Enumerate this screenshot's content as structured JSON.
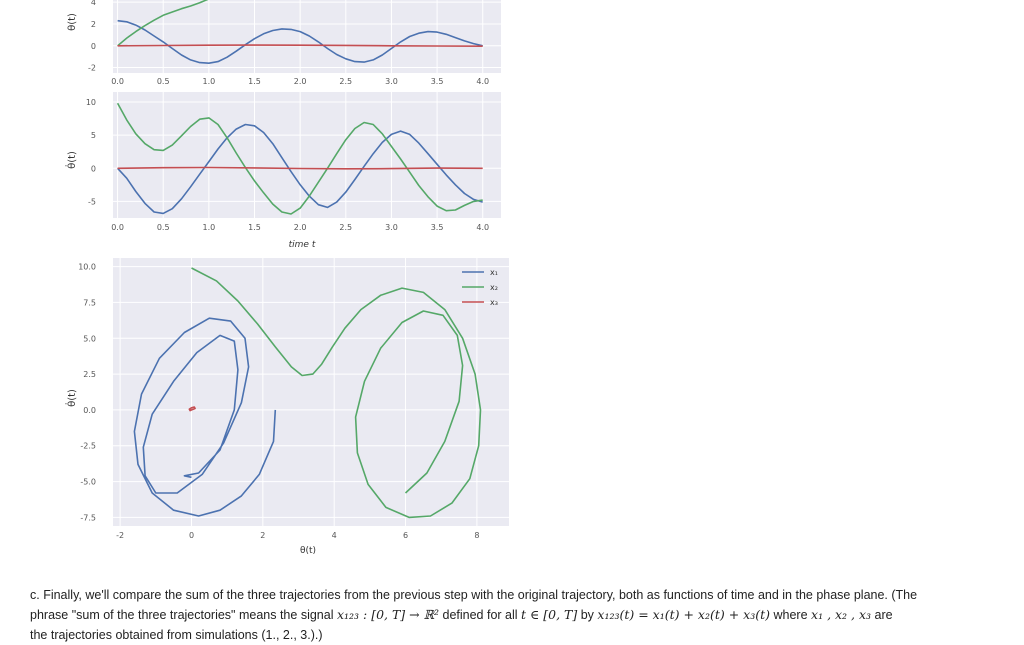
{
  "colors": {
    "x1": "#4c72b0",
    "x2": "#55a868",
    "x3": "#c44e52",
    "panel_bg": "#eaeaf2",
    "grid": "#ffffff",
    "tick_text": "#555555"
  },
  "chart_data": [
    {
      "type": "line",
      "id": "theta-vs-time",
      "xlabel": "",
      "ylabel": "θ(t)",
      "xlim": [
        -0.05,
        4.2
      ],
      "ylim": [
        -2.5,
        4.2
      ],
      "x_ticks": [
        "0.0",
        "0.5",
        "1.0",
        "1.5",
        "2.0",
        "2.5",
        "3.0",
        "3.5",
        "4.0"
      ],
      "y_ticks": [
        "4",
        "2",
        "0",
        "-2"
      ],
      "series": [
        {
          "name": "x1",
          "color": "x1",
          "x": [
            0,
            0.1,
            0.2,
            0.3,
            0.4,
            0.5,
            0.6,
            0.7,
            0.8,
            0.9,
            1.0,
            1.1,
            1.2,
            1.3,
            1.4,
            1.5,
            1.6,
            1.7,
            1.8,
            1.9,
            2.0,
            2.1,
            2.2,
            2.3,
            2.4,
            2.5,
            2.6,
            2.7,
            2.8,
            2.9,
            3.0,
            3.1,
            3.2,
            3.3,
            3.4,
            3.5,
            3.6,
            3.7,
            3.8,
            3.9,
            4.0
          ],
          "y": [
            2.3,
            2.2,
            1.9,
            1.45,
            0.9,
            0.35,
            -0.25,
            -0.85,
            -1.3,
            -1.55,
            -1.6,
            -1.45,
            -1.05,
            -0.5,
            0.1,
            0.65,
            1.1,
            1.4,
            1.55,
            1.5,
            1.3,
            0.9,
            0.35,
            -0.25,
            -0.8,
            -1.2,
            -1.45,
            -1.5,
            -1.3,
            -0.85,
            -0.25,
            0.35,
            0.85,
            1.15,
            1.3,
            1.25,
            1.05,
            0.75,
            0.45,
            0.2,
            0.0
          ]
        },
        {
          "name": "x2",
          "color": "x2",
          "x": [
            0,
            0.1,
            0.2,
            0.3,
            0.4,
            0.5,
            0.6,
            0.7,
            0.8,
            0.9,
            1.0
          ],
          "y": [
            0.0,
            0.7,
            1.3,
            1.85,
            2.35,
            2.8,
            3.1,
            3.4,
            3.65,
            3.95,
            4.3
          ]
        },
        {
          "name": "x3",
          "color": "x3",
          "x": [
            0,
            0.5,
            1.0,
            1.5,
            2.0,
            2.5,
            3.0,
            3.5,
            4.0
          ],
          "y": [
            0.0,
            0.02,
            0.05,
            0.06,
            0.05,
            0.03,
            0.0,
            -0.02,
            -0.04
          ]
        }
      ]
    },
    {
      "type": "line",
      "id": "thetadot-vs-time",
      "xlabel": "time t",
      "ylabel": "θ̇(t)",
      "xlim": [
        -0.05,
        4.2
      ],
      "ylim": [
        -7.5,
        11.5
      ],
      "x_ticks": [
        "0.0",
        "0.5",
        "1.0",
        "1.5",
        "2.0",
        "2.5",
        "3.0",
        "3.5",
        "4.0"
      ],
      "y_ticks": [
        "10",
        "5",
        "0",
        "-5"
      ],
      "series": [
        {
          "name": "x1",
          "color": "x1",
          "x": [
            0,
            0.1,
            0.2,
            0.3,
            0.4,
            0.5,
            0.6,
            0.7,
            0.8,
            0.9,
            1.0,
            1.1,
            1.2,
            1.3,
            1.4,
            1.5,
            1.6,
            1.7,
            1.8,
            1.9,
            2.0,
            2.1,
            2.2,
            2.3,
            2.4,
            2.5,
            2.6,
            2.7,
            2.8,
            2.9,
            3.0,
            3.1,
            3.2,
            3.3,
            3.4,
            3.5,
            3.6,
            3.7,
            3.8,
            3.9,
            4.0
          ],
          "y": [
            0.0,
            -1.5,
            -3.5,
            -5.3,
            -6.6,
            -6.8,
            -6.1,
            -4.6,
            -2.8,
            -0.9,
            1.0,
            2.9,
            4.6,
            5.9,
            6.6,
            6.4,
            5.4,
            3.7,
            1.6,
            -0.5,
            -2.5,
            -4.2,
            -5.5,
            -5.9,
            -5.1,
            -3.6,
            -1.7,
            0.3,
            2.2,
            3.9,
            5.1,
            5.6,
            5.1,
            3.8,
            2.2,
            0.6,
            -1.0,
            -2.5,
            -3.8,
            -4.7,
            -5.1
          ]
        },
        {
          "name": "x2",
          "color": "x2",
          "x": [
            0,
            0.1,
            0.2,
            0.3,
            0.4,
            0.5,
            0.6,
            0.7,
            0.8,
            0.9,
            1.0,
            1.1,
            1.2,
            1.3,
            1.4,
            1.5,
            1.6,
            1.7,
            1.8,
            1.9,
            2.0,
            2.1,
            2.2,
            2.3,
            2.4,
            2.5,
            2.6,
            2.7,
            2.8,
            2.9,
            3.0,
            3.1,
            3.2,
            3.3,
            3.4,
            3.5,
            3.6,
            3.7,
            3.8,
            3.9,
            4.0
          ],
          "y": [
            9.8,
            7.3,
            5.2,
            3.7,
            2.8,
            2.7,
            3.5,
            4.9,
            6.3,
            7.4,
            7.6,
            6.6,
            4.6,
            2.3,
            0.1,
            -1.9,
            -3.7,
            -5.4,
            -6.6,
            -6.9,
            -6.0,
            -4.2,
            -2.1,
            0.0,
            2.2,
            4.3,
            6.0,
            6.9,
            6.6,
            5.2,
            3.3,
            1.4,
            -0.6,
            -2.6,
            -4.3,
            -5.7,
            -6.4,
            -6.3,
            -5.6,
            -5.0,
            -4.8
          ]
        },
        {
          "name": "x3",
          "color": "x3",
          "x": [
            0,
            0.5,
            1.0,
            1.5,
            2.0,
            2.5,
            3.0,
            3.5,
            4.0
          ],
          "y": [
            0.0,
            0.08,
            0.12,
            0.06,
            -0.03,
            -0.08,
            -0.05,
            0.02,
            0.0
          ]
        }
      ]
    },
    {
      "type": "line",
      "id": "phase-plane",
      "xlabel": "θ(t)",
      "ylabel": "θ̇(t)",
      "xlim": [
        -2.2,
        8.9
      ],
      "ylim": [
        -8.1,
        10.6
      ],
      "x_ticks": [
        "-2",
        "0",
        "2",
        "4",
        "6",
        "8"
      ],
      "y_ticks": [
        "10.0",
        "7.5",
        "5.0",
        "2.5",
        "0.0",
        "-2.5",
        "-5.0",
        "-7.5"
      ],
      "legend": {
        "position": "top-right",
        "entries": [
          "x₁",
          "x₂",
          "x₃"
        ]
      },
      "series": [
        {
          "name": "x1",
          "color": "x1",
          "x": [
            2.35,
            2.3,
            1.9,
            1.4,
            0.8,
            0.2,
            -0.5,
            -1.1,
            -1.5,
            -1.6,
            -1.4,
            -0.9,
            -0.2,
            0.5,
            1.1,
            1.5,
            1.6,
            1.4,
            0.9,
            0.3,
            -0.4,
            -1.0,
            -1.3,
            -1.35,
            -1.1,
            -0.5,
            0.15,
            0.8,
            1.2,
            1.3,
            1.2,
            0.8,
            0.2,
            -0.2,
            0.0
          ],
          "y": [
            0.0,
            -2.2,
            -4.5,
            -6.0,
            -7.0,
            -7.4,
            -7.0,
            -5.8,
            -3.8,
            -1.5,
            1.1,
            3.6,
            5.4,
            6.4,
            6.2,
            5.0,
            3.0,
            0.5,
            -2.3,
            -4.5,
            -5.8,
            -5.8,
            -4.6,
            -2.6,
            -0.3,
            2.0,
            4.0,
            5.2,
            4.8,
            2.8,
            0.0,
            -2.8,
            -4.4,
            -4.6,
            -4.7
          ]
        },
        {
          "name": "x2",
          "color": "x2",
          "x": [
            0.0,
            0.7,
            1.3,
            1.85,
            2.35,
            2.8,
            3.1,
            3.4,
            3.65,
            3.95,
            4.3,
            4.75,
            5.3,
            5.9,
            6.5,
            7.1,
            7.6,
            7.95,
            8.1,
            8.05,
            7.8,
            7.3,
            6.7,
            6.1,
            5.45,
            4.95,
            4.65,
            4.6,
            4.85,
            5.3,
            5.9,
            6.5,
            7.05,
            7.45,
            7.6,
            7.5,
            7.1,
            6.6,
            6.0
          ],
          "y": [
            9.9,
            9.0,
            7.6,
            6.0,
            4.4,
            3.0,
            2.4,
            2.5,
            3.2,
            4.4,
            5.7,
            7.0,
            8.0,
            8.5,
            8.2,
            7.0,
            5.0,
            2.5,
            0.0,
            -2.5,
            -4.8,
            -6.5,
            -7.4,
            -7.5,
            -6.8,
            -5.2,
            -3.0,
            -0.5,
            2.0,
            4.3,
            6.1,
            6.9,
            6.6,
            5.2,
            3.1,
            0.6,
            -2.2,
            -4.4,
            -5.8
          ]
        },
        {
          "name": "x3",
          "color": "x3",
          "x": [
            0.0,
            0.05,
            0.1,
            0.08,
            0.0,
            -0.06,
            -0.04,
            0.0
          ],
          "y": [
            0.0,
            0.05,
            0.1,
            0.2,
            0.15,
            0.05,
            -0.05,
            0.0
          ]
        }
      ]
    }
  ],
  "question": {
    "p1": "c. Finally, we'll compare the sum of the three trajectories from the previous step with the original trajectory, both as functions of time and in the phase plane. (The",
    "p2a": "phrase \"sum of the three trajectories\" means the signal ",
    "m1": "x₁₂₃ : [0, T] → ℝ²",
    "p2b": " defined for all ",
    "m2": "t ∈ [0, T]",
    "p2c": " by ",
    "m3": "x₁₂₃(t) = x₁(t) + x₂(t) + x₃(t)",
    "p2d": " where ",
    "m4": "x₁ , x₂ , x₃",
    "p2e": " are",
    "p3": "the trajectories obtained from simulations (1., 2., 3.).)"
  }
}
